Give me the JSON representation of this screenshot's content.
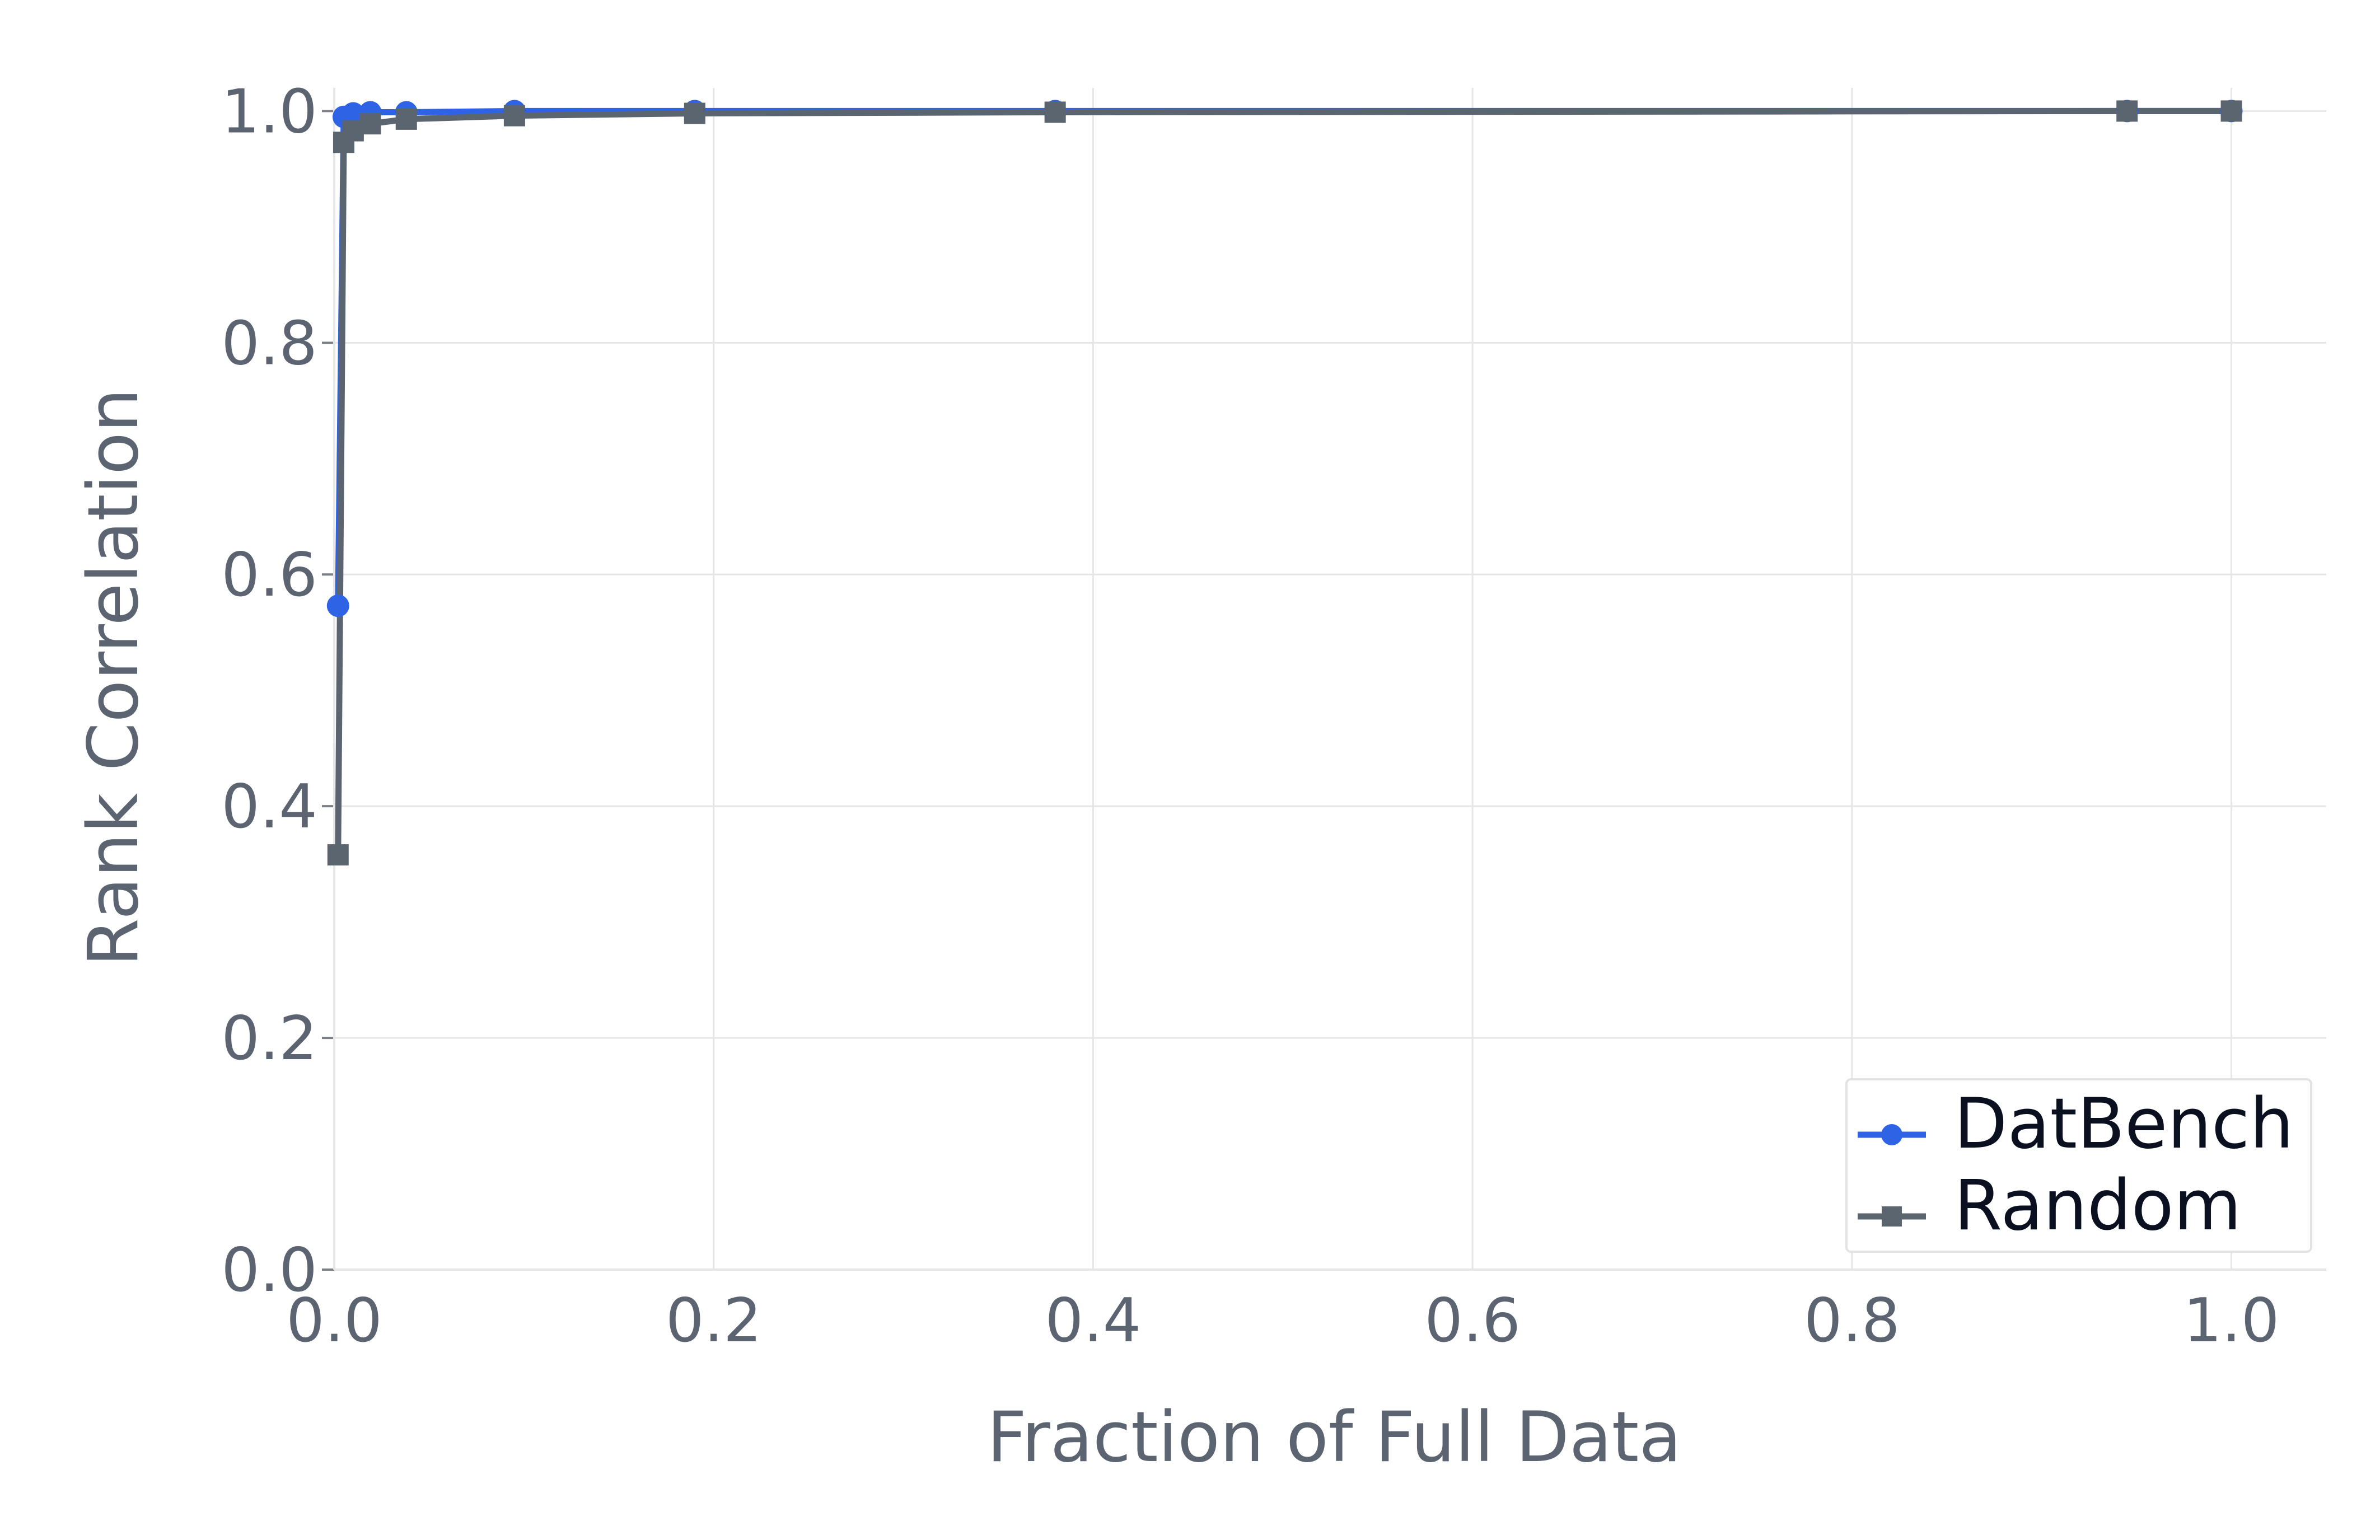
{
  "chart_data": {
    "type": "line",
    "xlabel": "Fraction of Full Data",
    "ylabel": "Rank Correlation",
    "xlim": [
      0,
      1.05
    ],
    "ylim": [
      0,
      1.02
    ],
    "xticks": [
      "0.0",
      "0.2",
      "0.4",
      "0.6",
      "0.8",
      "1.0"
    ],
    "yticks": [
      "0.0",
      "0.2",
      "0.4",
      "0.6",
      "0.8",
      "1.0"
    ],
    "grid": true,
    "legend_position": "bottom-right",
    "series": [
      {
        "name": "DatBench",
        "color": "#2f63e6",
        "marker": "circle",
        "x": [
          0.002,
          0.005,
          0.01,
          0.019,
          0.038,
          0.095,
          0.19,
          0.38,
          0.945,
          1.0
        ],
        "y": [
          0.573,
          0.995,
          0.998,
          0.999,
          0.999,
          1.0,
          1.0,
          1.0,
          1.0,
          1.0
        ]
      },
      {
        "name": "Random",
        "color": "#5b6570",
        "marker": "square",
        "x": [
          0.002,
          0.005,
          0.01,
          0.019,
          0.038,
          0.095,
          0.19,
          0.38,
          0.945,
          1.0
        ],
        "y": [
          0.358,
          0.973,
          0.983,
          0.989,
          0.993,
          0.996,
          0.998,
          0.999,
          1.0,
          1.0
        ]
      }
    ]
  }
}
